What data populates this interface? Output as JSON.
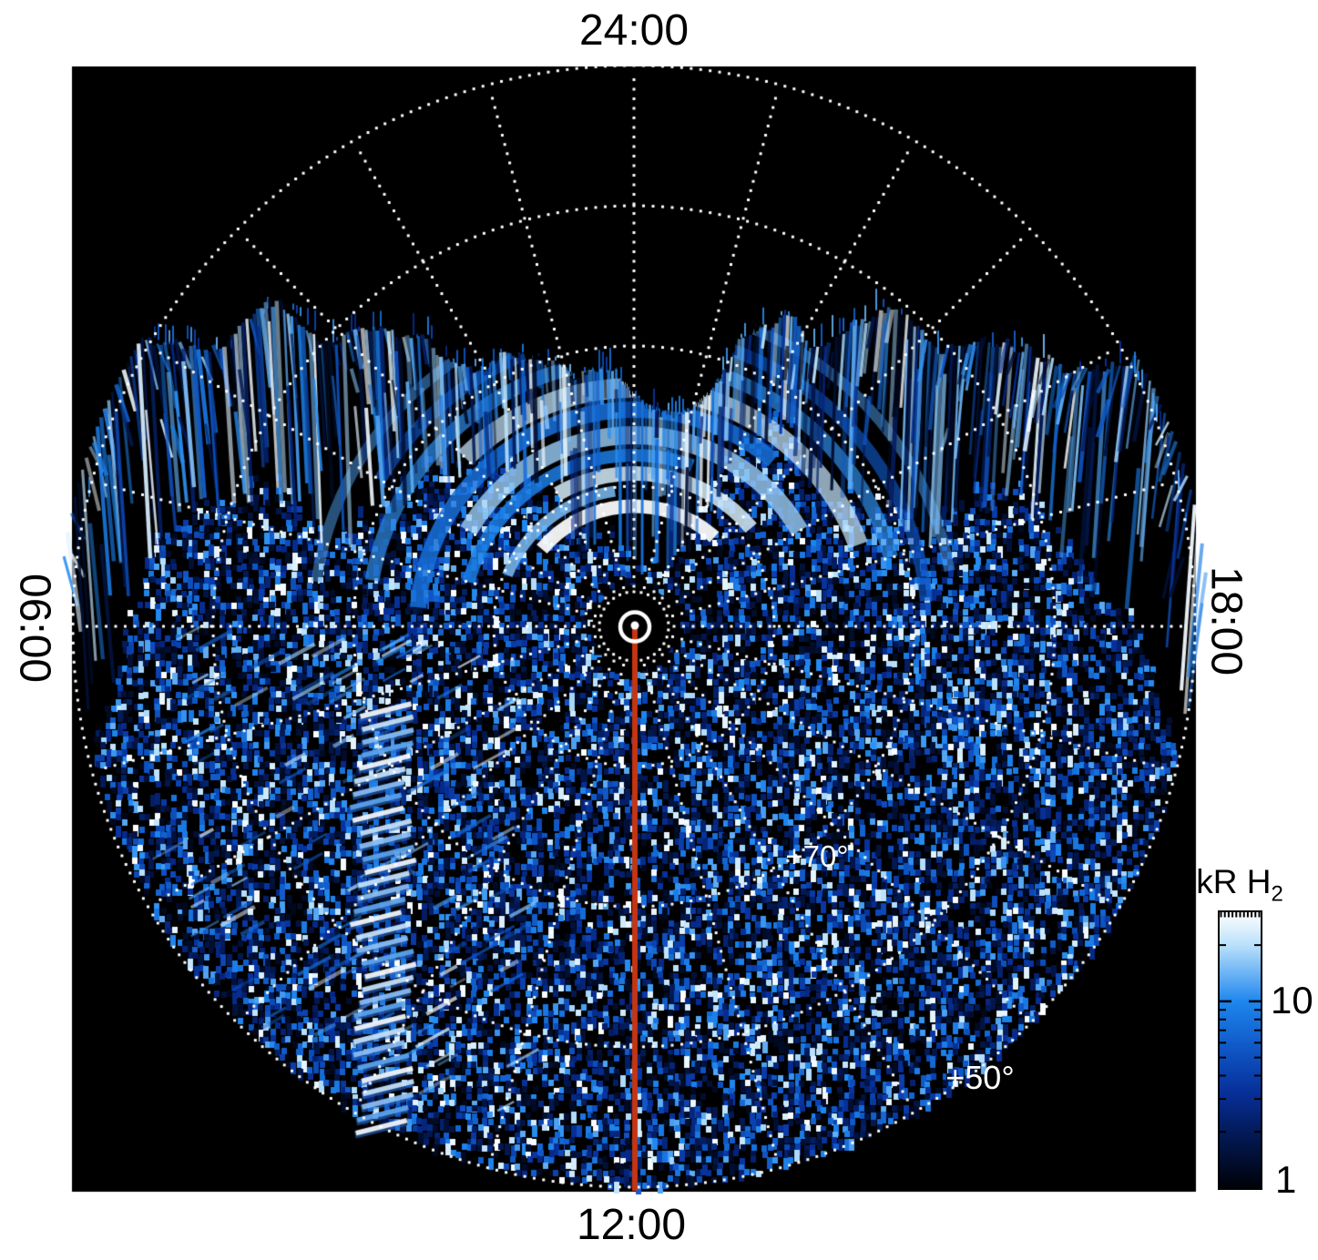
{
  "figure": {
    "page_background": "#ffffff",
    "plot_background": "#000000",
    "grid_color": "#ffffff",
    "meridian_line_color": "#c43511",
    "pole_marker_color": "#ffffff"
  },
  "axis_labels": {
    "top": "24:00",
    "bottom": "12:00",
    "left": "06:00",
    "right": "18:00"
  },
  "lat_labels": {
    "lat70": "+70°",
    "lat50": "+50°"
  },
  "colorbar": {
    "title_main": "kR H",
    "title_sub": "2",
    "scale": "log",
    "min": 1,
    "max": 30,
    "labeled_ticks": [
      {
        "value": 10,
        "label": "10"
      },
      {
        "value": 1,
        "label": "1"
      }
    ],
    "minor_ticks": [
      2,
      3,
      4,
      5,
      6,
      7,
      8,
      9,
      20
    ],
    "colormap_stops": [
      {
        "t": 0,
        "color": "#000208"
      },
      {
        "t": 0.2,
        "color": "#031a58"
      },
      {
        "t": 0.35,
        "color": "#07309a"
      },
      {
        "t": 0.5,
        "color": "#0f55c4"
      },
      {
        "t": 0.676,
        "color": "#1e86ee"
      },
      {
        "t": 0.88,
        "color": "#b9e0fa"
      },
      {
        "t": 1,
        "color": "#ffffff"
      }
    ]
  },
  "chart_data": {
    "type": "heatmap",
    "projection": "polar",
    "quantity": "H2 emission brightness",
    "units": "kR",
    "angular_axis": {
      "label_type": "local time",
      "tick_labels": [
        "24:00",
        "06:00",
        "12:00",
        "18:00"
      ],
      "tick_positions_deg_cw_from_top": [
        0,
        270,
        180,
        90
      ],
      "spoke_interval_hours": 1,
      "local_time_increases": "counterclockwise"
    },
    "radial_axis": {
      "quantity": "latitude",
      "pole_at_center": true,
      "grid_rings_deg": [
        80,
        70,
        60,
        50
      ],
      "outer_edge_deg": 50,
      "ring_labels_shown": [
        "+70°",
        "+50°"
      ],
      "ring_label_local_time": "15:00"
    },
    "colorbar": {
      "title": "kR H2",
      "scale": "log",
      "range": [
        1,
        30
      ],
      "labeled_ticks": [
        10,
        1
      ],
      "colors_low_to_high": [
        "#000208",
        "#07309a",
        "#1e86ee",
        "#b9e0fa",
        "#ffffff"
      ]
    },
    "grid_style": "white dotted circles and hourly spokes drawn over the map",
    "features": [
      "black no-data region poleward of roughly 65-80 degrees on the midnight (top) side, grid still visible",
      "bright blue-white auroral arc bands between about 66 and 80 degrees latitude arcing around the midnight sector",
      "vertical streaky texture along the upper data boundary",
      "dense blue speckle noise over the dayside (lower) half out to the 50 degree edge",
      "column of bright diagonal dashes near 07:30-08:00 local time mid latitudes",
      "red-orange meridian line along 12:00 local time from the pole to the plot edge",
      "white ring marking the pole at the center"
    ]
  }
}
